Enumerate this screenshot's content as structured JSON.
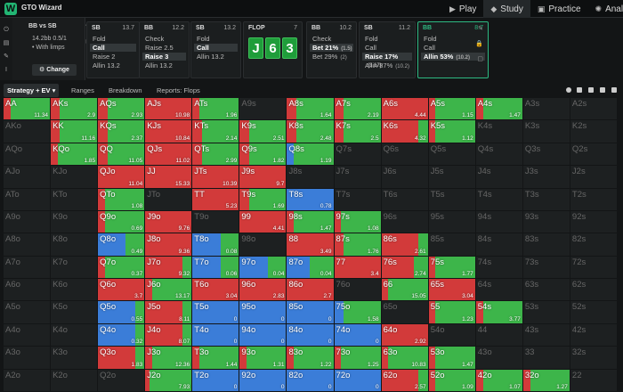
{
  "app": {
    "title": "GTO Wizard"
  },
  "nav": [
    {
      "label": "Play",
      "icon": "play-icon",
      "glyph": "▶"
    },
    {
      "label": "Study",
      "icon": "study-icon",
      "glyph": "◆",
      "active": true
    },
    {
      "label": "Practice",
      "icon": "gamepad-icon",
      "glyph": "▣"
    },
    {
      "label": "Analyze",
      "icon": "sun-icon",
      "glyph": "✺"
    }
  ],
  "spot": {
    "title": "BB vs SB",
    "stack": "14.2bb 0.5/1",
    "limps": "• With limps",
    "change_label": "Change"
  },
  "nodes": [
    {
      "pos": "SB",
      "stack": "13.7",
      "actions": [
        {
          "label": "Fold"
        },
        {
          "label": "Call",
          "selected": true
        },
        {
          "label": "Raise 2"
        },
        {
          "label": "Allin 13.2"
        }
      ]
    },
    {
      "pos": "BB",
      "stack": "12.2",
      "actions": [
        {
          "label": "Check"
        },
        {
          "label": "Raise 2.5"
        },
        {
          "label": "Raise 3",
          "selected": true
        },
        {
          "label": "Allin 13.2"
        }
      ]
    },
    {
      "pos": "SB",
      "stack": "13.2",
      "actions": [
        {
          "label": "Fold"
        },
        {
          "label": "Call",
          "selected": true
        },
        {
          "label": "Allin 13.2"
        }
      ]
    },
    {
      "pos": "BB",
      "stack": "10.2",
      "actions": [
        {
          "label": "Check"
        },
        {
          "label": "Bet 21%",
          "pct": "(1.5)",
          "selected": true
        },
        {
          "label": "Bet 29%",
          "pct": "(2)"
        }
      ]
    },
    {
      "pos": "SB",
      "stack": "11.2",
      "actions": [
        {
          "label": "Fold"
        },
        {
          "label": "Call"
        },
        {
          "label": "Raise 17%",
          "pct": "(3.17)",
          "selected": true
        },
        {
          "label": "Allin 87%",
          "pct": "(10.2)"
        }
      ]
    },
    {
      "pos": "BB",
      "stack": "8.7",
      "actions": [
        {
          "label": "Fold"
        },
        {
          "label": "Call"
        },
        {
          "label": "Allin 53%",
          "pct": "(10.2)",
          "selected": true
        }
      ]
    }
  ],
  "flop": {
    "label": "FLOP",
    "pot": "7",
    "cards": [
      "J",
      "6",
      "3"
    ]
  },
  "tabs": [
    "Strategy + EV",
    "Ranges",
    "Breakdown",
    "Reports: Flops"
  ],
  "colors": {
    "fold": "#3b7dd8",
    "call": "#3db54a",
    "allin": "#d23a3a",
    "empty": "#1d2021"
  },
  "grid": [
    [
      [
        "AA",
        [
          0,
          0.85,
          0.15
        ],
        "11.34"
      ],
      [
        "AKs",
        [
          0,
          0.8,
          0.2
        ],
        "2.9"
      ],
      [
        "AQs",
        [
          0,
          0.8,
          0.2
        ],
        "2.93"
      ],
      [
        "AJs",
        [
          0,
          0,
          1
        ],
        "10.98"
      ],
      [
        "ATs",
        [
          0,
          0.85,
          0.15
        ],
        "1.96"
      ],
      [
        "A9s",
        null,
        ""
      ],
      [
        "A8s",
        [
          0,
          0.8,
          0.2
        ],
        "1.64"
      ],
      [
        "A7s",
        [
          0,
          0.8,
          0.2
        ],
        "2.19"
      ],
      [
        "A6s",
        [
          0,
          0,
          1
        ],
        "4.44"
      ],
      [
        "A5s",
        [
          0,
          0.85,
          0.15
        ],
        "1.15"
      ],
      [
        "A4s",
        [
          0,
          0.85,
          0.15
        ],
        "1.47"
      ],
      [
        "A3s",
        null,
        ""
      ],
      [
        "A2s",
        null,
        ""
      ]
    ],
    [
      [
        "AKo",
        null,
        ""
      ],
      [
        "KK",
        [
          0,
          0.8,
          0.2
        ],
        "11.16"
      ],
      [
        "KQs",
        [
          0,
          0.8,
          0.2
        ],
        "2.37"
      ],
      [
        "KJs",
        [
          0,
          0,
          1
        ],
        "10.84"
      ],
      [
        "KTs",
        [
          0,
          0.8,
          0.2
        ],
        "2.14"
      ],
      [
        "K9s",
        [
          0,
          0.8,
          0.2
        ],
        "2.51"
      ],
      [
        "K8s",
        [
          0,
          0.8,
          0.2
        ],
        "2.48"
      ],
      [
        "K7s",
        [
          0,
          0.8,
          0.2
        ],
        "2.5"
      ],
      [
        "K6s",
        [
          0,
          0.2,
          0.8
        ],
        "4.32"
      ],
      [
        "K5s",
        [
          0,
          0.85,
          0.15
        ],
        "1.12"
      ],
      [
        "K4s",
        null,
        ""
      ],
      [
        "K3s",
        null,
        ""
      ],
      [
        "K2s",
        null,
        ""
      ]
    ],
    [
      [
        "AQo",
        null,
        ""
      ],
      [
        "KQo",
        [
          0,
          0.85,
          0.15
        ],
        "1.85"
      ],
      [
        "QQ",
        [
          0,
          0.8,
          0.2
        ],
        "11.05"
      ],
      [
        "QJs",
        [
          0,
          0,
          1
        ],
        "11.02"
      ],
      [
        "QTs",
        [
          0,
          0.8,
          0.2
        ],
        "2.99"
      ],
      [
        "Q9s",
        [
          0,
          0.8,
          0.2
        ],
        "1.82"
      ],
      [
        "Q8s",
        [
          0.15,
          0.85,
          0
        ],
        "1.19"
      ],
      [
        "Q7s",
        null,
        ""
      ],
      [
        "Q6s",
        null,
        ""
      ],
      [
        "Q5s",
        null,
        ""
      ],
      [
        "Q4s",
        null,
        ""
      ],
      [
        "Q3s",
        null,
        ""
      ],
      [
        "Q2s",
        null,
        ""
      ]
    ],
    [
      [
        "AJo",
        null,
        ""
      ],
      [
        "KJo",
        null,
        ""
      ],
      [
        "QJo",
        [
          0,
          0,
          1
        ],
        "11.04"
      ],
      [
        "JJ",
        [
          0,
          0,
          1
        ],
        "15.33"
      ],
      [
        "JTs",
        [
          0,
          0,
          1
        ],
        "10.39"
      ],
      [
        "J9s",
        [
          0,
          0,
          1
        ],
        "9.7"
      ],
      [
        "J8s",
        null,
        ""
      ],
      [
        "J7s",
        null,
        ""
      ],
      [
        "J6s",
        null,
        ""
      ],
      [
        "J5s",
        null,
        ""
      ],
      [
        "J4s",
        null,
        ""
      ],
      [
        "J3s",
        null,
        ""
      ],
      [
        "J2s",
        null,
        ""
      ]
    ],
    [
      [
        "ATo",
        null,
        ""
      ],
      [
        "KTo",
        null,
        ""
      ],
      [
        "QTo",
        [
          0,
          0.85,
          0.15
        ],
        "1.08"
      ],
      [
        "JTo",
        null,
        ""
      ],
      [
        "TT",
        [
          0,
          0,
          1
        ],
        "5.23"
      ],
      [
        "T9s",
        [
          0,
          0.8,
          0.2
        ],
        "1.69"
      ],
      [
        "T8s",
        [
          1,
          0,
          0
        ],
        "0.78"
      ],
      [
        "T7s",
        null,
        ""
      ],
      [
        "T6s",
        null,
        ""
      ],
      [
        "T5s",
        null,
        ""
      ],
      [
        "T4s",
        null,
        ""
      ],
      [
        "T3s",
        null,
        ""
      ],
      [
        "T2s",
        null,
        ""
      ]
    ],
    [
      [
        "A9o",
        null,
        ""
      ],
      [
        "K9o",
        null,
        ""
      ],
      [
        "Q9o",
        [
          0,
          0.85,
          0.15
        ],
        "0.69"
      ],
      [
        "J9o",
        [
          0,
          0,
          1
        ],
        "9.76"
      ],
      [
        "T9o",
        null,
        ""
      ],
      [
        "99",
        [
          0,
          0,
          1
        ],
        "4.41"
      ],
      [
        "98s",
        [
          0,
          0.85,
          0.15
        ],
        "1.47"
      ],
      [
        "97s",
        [
          0,
          0.85,
          0.15
        ],
        "1.08"
      ],
      [
        "96s",
        null,
        ""
      ],
      [
        "95s",
        null,
        ""
      ],
      [
        "94s",
        null,
        ""
      ],
      [
        "93s",
        null,
        ""
      ],
      [
        "92s",
        null,
        ""
      ]
    ],
    [
      [
        "A8o",
        null,
        ""
      ],
      [
        "K8o",
        null,
        ""
      ],
      [
        "Q8o",
        [
          0.6,
          0.4,
          0
        ],
        "0.49"
      ],
      [
        "J8o",
        [
          0,
          0,
          1
        ],
        "9.36"
      ],
      [
        "T8o",
        [
          0.6,
          0.4,
          0
        ],
        "0.08"
      ],
      [
        "98o",
        null,
        ""
      ],
      [
        "88",
        [
          0,
          0,
          1
        ],
        "3.49"
      ],
      [
        "87s",
        [
          0,
          0.8,
          0.2
        ],
        "1.76"
      ],
      [
        "86s",
        [
          0,
          0.2,
          0.8
        ],
        "2.61"
      ],
      [
        "85s",
        null,
        ""
      ],
      [
        "84s",
        null,
        ""
      ],
      [
        "83s",
        null,
        ""
      ],
      [
        "82s",
        null,
        ""
      ]
    ],
    [
      [
        "A7o",
        null,
        ""
      ],
      [
        "K7o",
        null,
        ""
      ],
      [
        "Q7o",
        [
          0,
          0.85,
          0.15
        ],
        "0.37"
      ],
      [
        "J7o",
        [
          0,
          0.2,
          0.8
        ],
        "9.32"
      ],
      [
        "T7o",
        [
          0.6,
          0.4,
          0
        ],
        "0.06"
      ],
      [
        "97o",
        [
          0.6,
          0.4,
          0
        ],
        "0.04"
      ],
      [
        "87o",
        [
          0.5,
          0.5,
          0
        ],
        "0.04"
      ],
      [
        "77",
        [
          0,
          0,
          1
        ],
        "3.4"
      ],
      [
        "76s",
        [
          0,
          0.3,
          0.7
        ],
        "2.74"
      ],
      [
        "75s",
        [
          0,
          0.85,
          0.15
        ],
        "1.77"
      ],
      [
        "74s",
        null,
        ""
      ],
      [
        "73s",
        null,
        ""
      ],
      [
        "72s",
        null,
        ""
      ]
    ],
    [
      [
        "A6o",
        null,
        ""
      ],
      [
        "K6o",
        null,
        ""
      ],
      [
        "Q6o",
        [
          0,
          0,
          1
        ],
        "3.7"
      ],
      [
        "J6o",
        [
          0,
          0.85,
          0.15
        ],
        "13.17"
      ],
      [
        "T6o",
        [
          0,
          0,
          1
        ],
        "3.04"
      ],
      [
        "96o",
        [
          0,
          0,
          1
        ],
        "2.83"
      ],
      [
        "86o",
        [
          0,
          0,
          1
        ],
        "2.7"
      ],
      [
        "76o",
        null,
        ""
      ],
      [
        "66",
        [
          0,
          0.85,
          0.15
        ],
        "15.05"
      ],
      [
        "65s",
        [
          0,
          0,
          1
        ],
        "3.04"
      ],
      [
        "64s",
        null,
        ""
      ],
      [
        "63s",
        null,
        ""
      ],
      [
        "62s",
        null,
        ""
      ]
    ],
    [
      [
        "A5o",
        null,
        ""
      ],
      [
        "K5o",
        null,
        ""
      ],
      [
        "Q5o",
        [
          0.8,
          0.2,
          0
        ],
        "0.55"
      ],
      [
        "J5o",
        [
          0,
          0.2,
          0.8
        ],
        "8.11"
      ],
      [
        "T5o",
        [
          1,
          0,
          0
        ],
        "0"
      ],
      [
        "95o",
        [
          1,
          0,
          0
        ],
        "0"
      ],
      [
        "85o",
        [
          1,
          0,
          0
        ],
        "0"
      ],
      [
        "75o",
        [
          0.2,
          0.8,
          0
        ],
        "1.58"
      ],
      [
        "65o",
        null,
        ""
      ],
      [
        "55",
        [
          0,
          0.85,
          0.15
        ],
        "1.23"
      ],
      [
        "54s",
        [
          0,
          0.85,
          0.15
        ],
        "3.77"
      ],
      [
        "53s",
        null,
        ""
      ],
      [
        "52s",
        null,
        ""
      ]
    ],
    [
      [
        "A4o",
        null,
        ""
      ],
      [
        "K4o",
        null,
        ""
      ],
      [
        "Q4o",
        [
          0.8,
          0.2,
          0
        ],
        "0.32"
      ],
      [
        "J4o",
        [
          0,
          0.2,
          0.8
        ],
        "8.07"
      ],
      [
        "T4o",
        [
          1,
          0,
          0
        ],
        "0"
      ],
      [
        "94o",
        [
          1,
          0,
          0
        ],
        "0"
      ],
      [
        "84o",
        [
          1,
          0,
          0
        ],
        "0"
      ],
      [
        "74o",
        [
          1,
          0,
          0
        ],
        "0"
      ],
      [
        "64o",
        [
          0,
          0,
          1
        ],
        "2.92"
      ],
      [
        "54o",
        null,
        ""
      ],
      [
        "44",
        null,
        ""
      ],
      [
        "43s",
        null,
        ""
      ],
      [
        "42s",
        null,
        ""
      ]
    ],
    [
      [
        "A3o",
        null,
        ""
      ],
      [
        "K3o",
        null,
        ""
      ],
      [
        "Q3o",
        [
          0,
          0.2,
          0.8
        ],
        "1.83"
      ],
      [
        "J3o",
        [
          0,
          0.85,
          0.15
        ],
        "12.36"
      ],
      [
        "T3o",
        [
          0,
          0.85,
          0.15
        ],
        "1.44"
      ],
      [
        "93o",
        [
          0,
          0.85,
          0.15
        ],
        "1.31"
      ],
      [
        "83o",
        [
          0,
          0.85,
          0.15
        ],
        "1.22"
      ],
      [
        "73o",
        [
          0,
          0.85,
          0.15
        ],
        "1.25"
      ],
      [
        "63o",
        [
          0,
          0.85,
          0.15
        ],
        "10.83"
      ],
      [
        "53o",
        [
          0,
          0.85,
          0.15
        ],
        "1.47"
      ],
      [
        "43o",
        null,
        ""
      ],
      [
        "33",
        null,
        ""
      ],
      [
        "32s",
        null,
        ""
      ]
    ],
    [
      [
        "A2o",
        null,
        ""
      ],
      [
        "K2o",
        null,
        ""
      ],
      [
        "Q2o",
        null,
        ""
      ],
      [
        "J2o",
        [
          0,
          0.9,
          0.1
        ],
        "7.93"
      ],
      [
        "T2o",
        [
          1,
          0,
          0
        ],
        "0"
      ],
      [
        "92o",
        [
          1,
          0,
          0
        ],
        "0"
      ],
      [
        "82o",
        [
          1,
          0,
          0
        ],
        "0"
      ],
      [
        "72o",
        [
          1,
          0,
          0
        ],
        "0"
      ],
      [
        "62o",
        [
          0,
          0.2,
          0.8
        ],
        "2.57"
      ],
      [
        "52o",
        [
          0,
          0.85,
          0.15
        ],
        "1.09"
      ],
      [
        "42o",
        [
          0,
          0.85,
          0.15
        ],
        "1.07"
      ],
      [
        "32o",
        [
          0,
          0.85,
          0.15
        ],
        "1.27"
      ],
      [
        "22",
        null,
        ""
      ]
    ]
  ]
}
